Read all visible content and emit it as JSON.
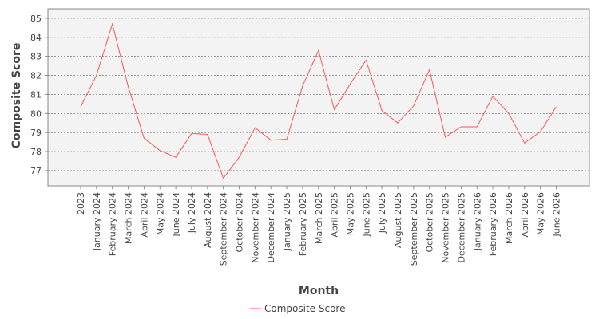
{
  "chart_data": {
    "type": "line",
    "title": "",
    "xlabel": "Month",
    "ylabel": "Composite Score",
    "ylim": [
      76.2,
      85.5
    ],
    "yticks": [
      77,
      78,
      79,
      80,
      81,
      82,
      83,
      84,
      85
    ],
    "grid": true,
    "legend": "bottom-center",
    "categories": [
      "2023",
      "January 2024",
      "February 2024",
      "March 2024",
      "April 2024",
      "May 2024",
      "June 2024",
      "July 2024",
      "August 2024",
      "September 2024",
      "October 2024",
      "November 2024",
      "December 2024",
      "January 2025",
      "February 2025",
      "March 2025",
      "April 2025",
      "May 2025",
      "June 2025",
      "July 2025",
      "August 2025",
      "September 2025",
      "October 2025",
      "November 2025",
      "December 2025",
      "January 2026",
      "February 2026",
      "March 2026",
      "April 2026",
      "May 2026",
      "June 2026"
    ],
    "series": [
      {
        "name": "Composite Score",
        "color": "#ff5555",
        "values": [
          80.35,
          82.0,
          84.7,
          81.4,
          78.7,
          78.05,
          77.7,
          78.95,
          78.9,
          76.6,
          77.7,
          79.25,
          78.6,
          78.65,
          81.45,
          83.3,
          80.2,
          81.55,
          82.8,
          80.15,
          79.5,
          80.4,
          82.3,
          78.75,
          79.3,
          79.3,
          80.9,
          80.0,
          78.45,
          79.05,
          80.35
        ]
      }
    ]
  }
}
